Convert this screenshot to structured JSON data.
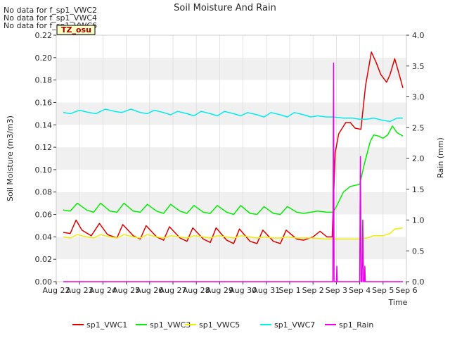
{
  "chart_data": {
    "type": "line",
    "title": "Soil Moisture And Rain",
    "xlabel": "Time",
    "ylabel": "Soil Moisture (m3/m3)",
    "y2label": "Rain (mm)",
    "no_data_notes": [
      "No data for f_sp1_VWC2",
      "No data for f_sp1_VWC4",
      "No data for f_sp1_VWC6"
    ],
    "badge": "TZ_osu",
    "x_ticks": [
      "Aug 22",
      "Aug 23",
      "Aug 24",
      "Aug 25",
      "Aug 26",
      "Aug 27",
      "Aug 28",
      "Aug 29",
      "Aug 30",
      "Aug 31",
      "Sep 1",
      "Sep 2",
      "Sep 3",
      "Sep 4",
      "Sep 5",
      "Sep 6"
    ],
    "xlim_days": [
      0,
      15
    ],
    "ylim": [
      0,
      0.22
    ],
    "y_ticks": [
      "0.00",
      "0.02",
      "0.04",
      "0.06",
      "0.08",
      "0.10",
      "0.12",
      "0.14",
      "0.16",
      "0.18",
      "0.20",
      "0.22"
    ],
    "y2lim": [
      0,
      4.0
    ],
    "y2_ticks": [
      "0.0",
      "0.5",
      "1.0",
      "1.5",
      "2.0",
      "2.5",
      "3.0",
      "3.5",
      "4.0"
    ],
    "grid": "horizontal bands",
    "legend_position": "bottom",
    "series": [
      {
        "name": "sp1_VWC1",
        "color": "#dd0000",
        "axis": "left",
        "points": [
          [
            0.3,
            0.044
          ],
          [
            0.6,
            0.043
          ],
          [
            0.85,
            0.055
          ],
          [
            1.1,
            0.046
          ],
          [
            1.5,
            0.041
          ],
          [
            1.85,
            0.052
          ],
          [
            2.2,
            0.042
          ],
          [
            2.6,
            0.039
          ],
          [
            2.85,
            0.051
          ],
          [
            3.3,
            0.041
          ],
          [
            3.6,
            0.038
          ],
          [
            3.85,
            0.05
          ],
          [
            4.3,
            0.04
          ],
          [
            4.6,
            0.037
          ],
          [
            4.85,
            0.049
          ],
          [
            5.3,
            0.039
          ],
          [
            5.6,
            0.036
          ],
          [
            5.85,
            0.048
          ],
          [
            6.3,
            0.038
          ],
          [
            6.6,
            0.035
          ],
          [
            6.85,
            0.048
          ],
          [
            7.3,
            0.037
          ],
          [
            7.6,
            0.034
          ],
          [
            7.85,
            0.047
          ],
          [
            8.3,
            0.036
          ],
          [
            8.6,
            0.034
          ],
          [
            8.85,
            0.046
          ],
          [
            9.3,
            0.036
          ],
          [
            9.6,
            0.034
          ],
          [
            9.85,
            0.046
          ],
          [
            10.3,
            0.038
          ],
          [
            10.6,
            0.037
          ],
          [
            11.0,
            0.04
          ],
          [
            11.3,
            0.045
          ],
          [
            11.6,
            0.04
          ],
          [
            11.82,
            0.04
          ],
          [
            11.95,
            0.115
          ],
          [
            12.1,
            0.132
          ],
          [
            12.4,
            0.142
          ],
          [
            12.6,
            0.142
          ],
          [
            12.8,
            0.137
          ],
          [
            13.05,
            0.136
          ],
          [
            13.25,
            0.175
          ],
          [
            13.5,
            0.205
          ],
          [
            13.7,
            0.196
          ],
          [
            13.9,
            0.185
          ],
          [
            14.15,
            0.178
          ],
          [
            14.3,
            0.185
          ],
          [
            14.5,
            0.199
          ],
          [
            14.65,
            0.188
          ],
          [
            14.85,
            0.173
          ]
        ]
      },
      {
        "name": "sp1_VWC3",
        "color": "#00ee00",
        "axis": "left",
        "points": [
          [
            0.3,
            0.064
          ],
          [
            0.6,
            0.063
          ],
          [
            0.9,
            0.07
          ],
          [
            1.3,
            0.064
          ],
          [
            1.6,
            0.062
          ],
          [
            1.9,
            0.07
          ],
          [
            2.3,
            0.063
          ],
          [
            2.6,
            0.062
          ],
          [
            2.9,
            0.07
          ],
          [
            3.3,
            0.063
          ],
          [
            3.6,
            0.062
          ],
          [
            3.9,
            0.069
          ],
          [
            4.3,
            0.063
          ],
          [
            4.6,
            0.061
          ],
          [
            4.9,
            0.069
          ],
          [
            5.3,
            0.063
          ],
          [
            5.6,
            0.061
          ],
          [
            5.9,
            0.068
          ],
          [
            6.3,
            0.062
          ],
          [
            6.6,
            0.061
          ],
          [
            6.9,
            0.068
          ],
          [
            7.3,
            0.062
          ],
          [
            7.6,
            0.06
          ],
          [
            7.9,
            0.068
          ],
          [
            8.3,
            0.061
          ],
          [
            8.6,
            0.06
          ],
          [
            8.9,
            0.067
          ],
          [
            9.3,
            0.061
          ],
          [
            9.6,
            0.06
          ],
          [
            9.9,
            0.067
          ],
          [
            10.3,
            0.062
          ],
          [
            10.6,
            0.061
          ],
          [
            10.9,
            0.062
          ],
          [
            11.2,
            0.063
          ],
          [
            11.6,
            0.062
          ],
          [
            11.85,
            0.062
          ],
          [
            12.0,
            0.067
          ],
          [
            12.3,
            0.08
          ],
          [
            12.6,
            0.085
          ],
          [
            13.0,
            0.087
          ],
          [
            13.2,
            0.105
          ],
          [
            13.45,
            0.125
          ],
          [
            13.6,
            0.131
          ],
          [
            13.8,
            0.13
          ],
          [
            14.0,
            0.128
          ],
          [
            14.2,
            0.131
          ],
          [
            14.4,
            0.139
          ],
          [
            14.6,
            0.133
          ],
          [
            14.85,
            0.13
          ]
        ]
      },
      {
        "name": "sp1_VWC5",
        "color": "#eeee00",
        "axis": "left",
        "points": [
          [
            0.3,
            0.04
          ],
          [
            0.6,
            0.039
          ],
          [
            0.9,
            0.042
          ],
          [
            1.3,
            0.04
          ],
          [
            1.6,
            0.039
          ],
          [
            1.9,
            0.042
          ],
          [
            2.3,
            0.04
          ],
          [
            2.6,
            0.039
          ],
          [
            2.9,
            0.042
          ],
          [
            3.3,
            0.04
          ],
          [
            3.6,
            0.039
          ],
          [
            3.9,
            0.042
          ],
          [
            4.3,
            0.04
          ],
          [
            4.6,
            0.039
          ],
          [
            4.9,
            0.041
          ],
          [
            5.3,
            0.04
          ],
          [
            5.6,
            0.039
          ],
          [
            5.9,
            0.041
          ],
          [
            6.3,
            0.04
          ],
          [
            6.6,
            0.039
          ],
          [
            6.9,
            0.041
          ],
          [
            7.3,
            0.04
          ],
          [
            7.6,
            0.039
          ],
          [
            7.9,
            0.041
          ],
          [
            8.3,
            0.04
          ],
          [
            8.6,
            0.039
          ],
          [
            8.9,
            0.04
          ],
          [
            9.3,
            0.039
          ],
          [
            9.6,
            0.039
          ],
          [
            9.9,
            0.04
          ],
          [
            10.3,
            0.039
          ],
          [
            10.6,
            0.039
          ],
          [
            11.0,
            0.039
          ],
          [
            11.5,
            0.038
          ],
          [
            12.0,
            0.038
          ],
          [
            12.5,
            0.038
          ],
          [
            13.0,
            0.038
          ],
          [
            13.3,
            0.039
          ],
          [
            13.6,
            0.041
          ],
          [
            14.0,
            0.041
          ],
          [
            14.3,
            0.043
          ],
          [
            14.5,
            0.047
          ],
          [
            14.85,
            0.048
          ]
        ]
      },
      {
        "name": "sp1_VWC7",
        "color": "#00eeee",
        "axis": "left",
        "points": [
          [
            0.3,
            0.151
          ],
          [
            0.6,
            0.15
          ],
          [
            1.0,
            0.153
          ],
          [
            1.4,
            0.151
          ],
          [
            1.7,
            0.15
          ],
          [
            2.1,
            0.154
          ],
          [
            2.5,
            0.152
          ],
          [
            2.8,
            0.151
          ],
          [
            3.2,
            0.154
          ],
          [
            3.6,
            0.151
          ],
          [
            3.9,
            0.15
          ],
          [
            4.2,
            0.153
          ],
          [
            4.6,
            0.151
          ],
          [
            4.9,
            0.149
          ],
          [
            5.2,
            0.152
          ],
          [
            5.6,
            0.15
          ],
          [
            5.9,
            0.148
          ],
          [
            6.2,
            0.152
          ],
          [
            6.6,
            0.15
          ],
          [
            6.9,
            0.148
          ],
          [
            7.2,
            0.152
          ],
          [
            7.6,
            0.15
          ],
          [
            7.9,
            0.148
          ],
          [
            8.2,
            0.151
          ],
          [
            8.6,
            0.149
          ],
          [
            8.9,
            0.147
          ],
          [
            9.2,
            0.151
          ],
          [
            9.6,
            0.149
          ],
          [
            9.9,
            0.147
          ],
          [
            10.2,
            0.151
          ],
          [
            10.6,
            0.149
          ],
          [
            10.9,
            0.147
          ],
          [
            11.2,
            0.148
          ],
          [
            11.6,
            0.147
          ],
          [
            11.9,
            0.147
          ],
          [
            12.3,
            0.146
          ],
          [
            12.7,
            0.146
          ],
          [
            13.0,
            0.145
          ],
          [
            13.3,
            0.145
          ],
          [
            13.6,
            0.146
          ],
          [
            14.0,
            0.144
          ],
          [
            14.3,
            0.143
          ],
          [
            14.6,
            0.146
          ],
          [
            14.85,
            0.146
          ]
        ]
      },
      {
        "name": "sp1_Rain",
        "color": "#ee00ee",
        "axis": "right",
        "points": [
          [
            0.3,
            0
          ],
          [
            11.85,
            0
          ],
          [
            11.88,
            3.55
          ],
          [
            11.9,
            0
          ],
          [
            12.0,
            0
          ],
          [
            12.02,
            0.25
          ],
          [
            12.04,
            0
          ],
          [
            13.0,
            0
          ],
          [
            13.03,
            2.03
          ],
          [
            13.06,
            0
          ],
          [
            13.1,
            0
          ],
          [
            13.13,
            1.0
          ],
          [
            13.16,
            0
          ],
          [
            13.2,
            0
          ],
          [
            13.22,
            0.25
          ],
          [
            13.24,
            0
          ],
          [
            14.85,
            0
          ]
        ]
      }
    ]
  }
}
